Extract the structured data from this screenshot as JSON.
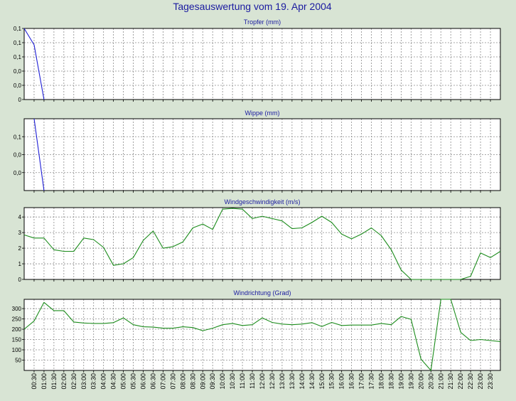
{
  "page": {
    "title": "Tagesauswertung vom 19. Apr 2004",
    "colors": {
      "background": "#d8e4d4",
      "plot_background": "#ffffff",
      "grid": "#8a8a8a",
      "title": "#1a1aa0"
    }
  },
  "time_labels": [
    "00:30",
    "01:00",
    "01:30",
    "02:00",
    "02:30",
    "03:00",
    "03:30",
    "04:00",
    "04:30",
    "05:00",
    "05:30",
    "06:00",
    "06:30",
    "07:00",
    "07:30",
    "08:00",
    "08:30",
    "09:00",
    "09:30",
    "10:00",
    "10:30",
    "11:00",
    "11:30",
    "12:00",
    "12:30",
    "13:00",
    "13:30",
    "14:00",
    "14:30",
    "15:00",
    "15:30",
    "16:00",
    "16:30",
    "17:00",
    "17:30",
    "18:00",
    "18:30",
    "19:00",
    "19:30",
    "20:00",
    "20:30",
    "21:00",
    "21:30",
    "22:00",
    "22:30",
    "23:00",
    "23:30"
  ],
  "chart_data": [
    {
      "type": "line",
      "title": "Tropfer (mm)",
      "color": "#1f1fd6",
      "x": [
        "00:00",
        "00:30",
        "01:00"
      ],
      "values": [
        0.13,
        0.1,
        0
      ],
      "ylim": [
        0,
        0.13
      ],
      "yticks": [
        0,
        0.026,
        0.052,
        0.078,
        0.104,
        0.13
      ],
      "ytick_labels": [
        "0",
        "0,0",
        "0,0",
        "0,1",
        "0,1",
        "0,1"
      ],
      "grid": true
    },
    {
      "type": "line",
      "title": "Wippe (mm)",
      "color": "#1f1fd6",
      "x": [
        "00:30",
        "01:00"
      ],
      "values": [
        0.12,
        0
      ],
      "ylim": [
        0,
        0.12
      ],
      "yticks": [
        0.03,
        0.06,
        0.09
      ],
      "ytick_labels": [
        "0,0",
        "0,0",
        "0,1"
      ],
      "grid": true
    },
    {
      "type": "line",
      "title": "Windgeschwindigkeit (m/s)",
      "color": "#1c8c1c",
      "x": [
        "00:00",
        "00:30",
        "01:00",
        "01:30",
        "02:00",
        "02:30",
        "03:00",
        "03:30",
        "04:00",
        "04:30",
        "05:00",
        "05:30",
        "06:00",
        "06:30",
        "07:00",
        "07:30",
        "08:00",
        "08:30",
        "09:00",
        "09:30",
        "10:00",
        "10:30",
        "11:00",
        "11:30",
        "12:00",
        "12:30",
        "13:00",
        "13:30",
        "14:00",
        "14:30",
        "15:00",
        "15:30",
        "16:00",
        "16:30",
        "17:00",
        "17:30",
        "18:00",
        "18:30",
        "19:00",
        "19:30",
        "20:00",
        "20:30",
        "21:00",
        "21:30",
        "22:00",
        "22:30",
        "23:00",
        "23:30",
        "24:00"
      ],
      "values": [
        2.85,
        2.65,
        2.65,
        1.9,
        1.8,
        1.8,
        2.65,
        2.55,
        2.05,
        0.9,
        1.0,
        1.4,
        2.5,
        3.1,
        2.0,
        2.1,
        2.4,
        3.3,
        3.55,
        3.2,
        4.5,
        4.55,
        4.5,
        3.9,
        4.05,
        3.9,
        3.75,
        3.25,
        3.3,
        3.65,
        4.05,
        3.65,
        2.9,
        2.6,
        2.9,
        3.3,
        2.8,
        1.9,
        0.6,
        0,
        0,
        0,
        0,
        0,
        0,
        0.2,
        1.7,
        1.4,
        1.8
      ],
      "ylim": [
        0,
        4.6
      ],
      "yticks": [
        0,
        1,
        2,
        3,
        4
      ],
      "ytick_labels": [
        "0",
        "1",
        "2",
        "3",
        "4"
      ],
      "grid": true
    },
    {
      "type": "line",
      "title": "Windrichtung (Grad)",
      "color": "#1c8c1c",
      "x": [
        "00:00",
        "00:30",
        "01:00",
        "01:30",
        "02:00",
        "02:30",
        "03:00",
        "03:30",
        "04:00",
        "04:30",
        "05:00",
        "05:30",
        "06:00",
        "06:30",
        "07:00",
        "07:30",
        "08:00",
        "08:30",
        "09:00",
        "09:30",
        "10:00",
        "10:30",
        "11:00",
        "11:30",
        "12:00",
        "12:30",
        "13:00",
        "13:30",
        "14:00",
        "14:30",
        "15:00",
        "15:30",
        "16:00",
        "16:30",
        "17:00",
        "17:30",
        "18:00",
        "18:30",
        "19:00",
        "19:30",
        "20:00",
        "20:30",
        "21:00",
        "21:30",
        "22:00",
        "22:30",
        "23:00",
        "23:30",
        "24:00"
      ],
      "values": [
        200,
        240,
        330,
        290,
        290,
        235,
        230,
        228,
        228,
        232,
        255,
        222,
        212,
        210,
        205,
        205,
        212,
        208,
        193,
        205,
        222,
        228,
        218,
        222,
        255,
        233,
        225,
        222,
        225,
        232,
        213,
        233,
        218,
        220,
        220,
        220,
        228,
        222,
        262,
        248,
        55,
        0,
        345,
        345,
        185,
        145,
        150,
        145,
        140
      ],
      "ylim": [
        0,
        345
      ],
      "yticks": [
        50,
        100,
        150,
        200,
        250,
        300
      ],
      "ytick_labels": [
        "50",
        "100",
        "150",
        "200",
        "250",
        "300"
      ],
      "grid": true
    }
  ]
}
